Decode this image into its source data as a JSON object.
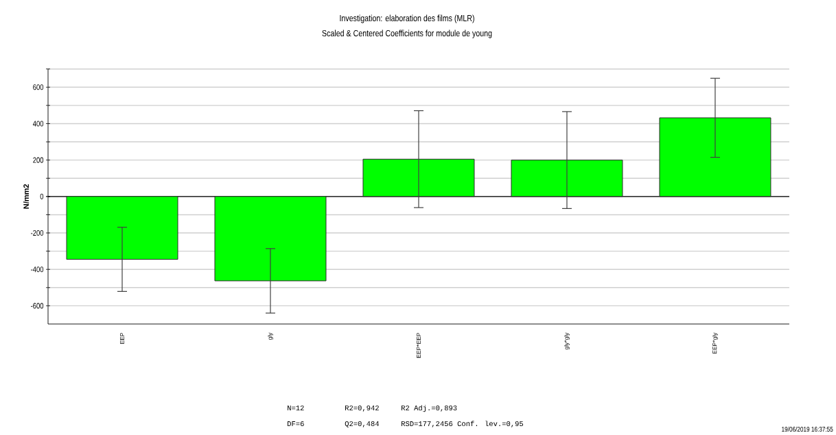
{
  "chart_data": {
    "type": "bar",
    "title": "Investigation: elaboration des films (MLR)",
    "subtitle": "Scaled & Centered Coefficients for module de young",
    "ylabel": "N/mm2",
    "categories": [
      "EEP",
      "gly",
      "EEP*EEP",
      "gly*gly",
      "EEP*gly"
    ],
    "values": [
      -345,
      -463,
      205,
      200,
      432
    ],
    "errors": [
      176,
      177,
      266,
      266,
      217
    ],
    "color": "#00ff00",
    "ylim": [
      -700,
      700
    ],
    "yticks": [
      -600,
      {
        "value": -500,
        "label": null
      },
      -400,
      {
        "value": -300,
        "label": null
      },
      -200,
      {
        "value": -100,
        "label": null
      },
      0,
      {
        "value": 100,
        "label": null
      },
      200,
      {
        "value": 300,
        "label": null
      },
      400,
      {
        "value": 500,
        "label": null
      },
      600,
      {
        "value": 700,
        "label": null
      }
    ],
    "grid": "y",
    "annotations": [
      "N=12",
      "R2=0,942",
      "R2 Adj.=0,893",
      "DF=6",
      "Q2=0,484",
      "RSD=177,2456 Conf. lev.=0,95",
      "19/06/2019 16:37:55"
    ]
  }
}
